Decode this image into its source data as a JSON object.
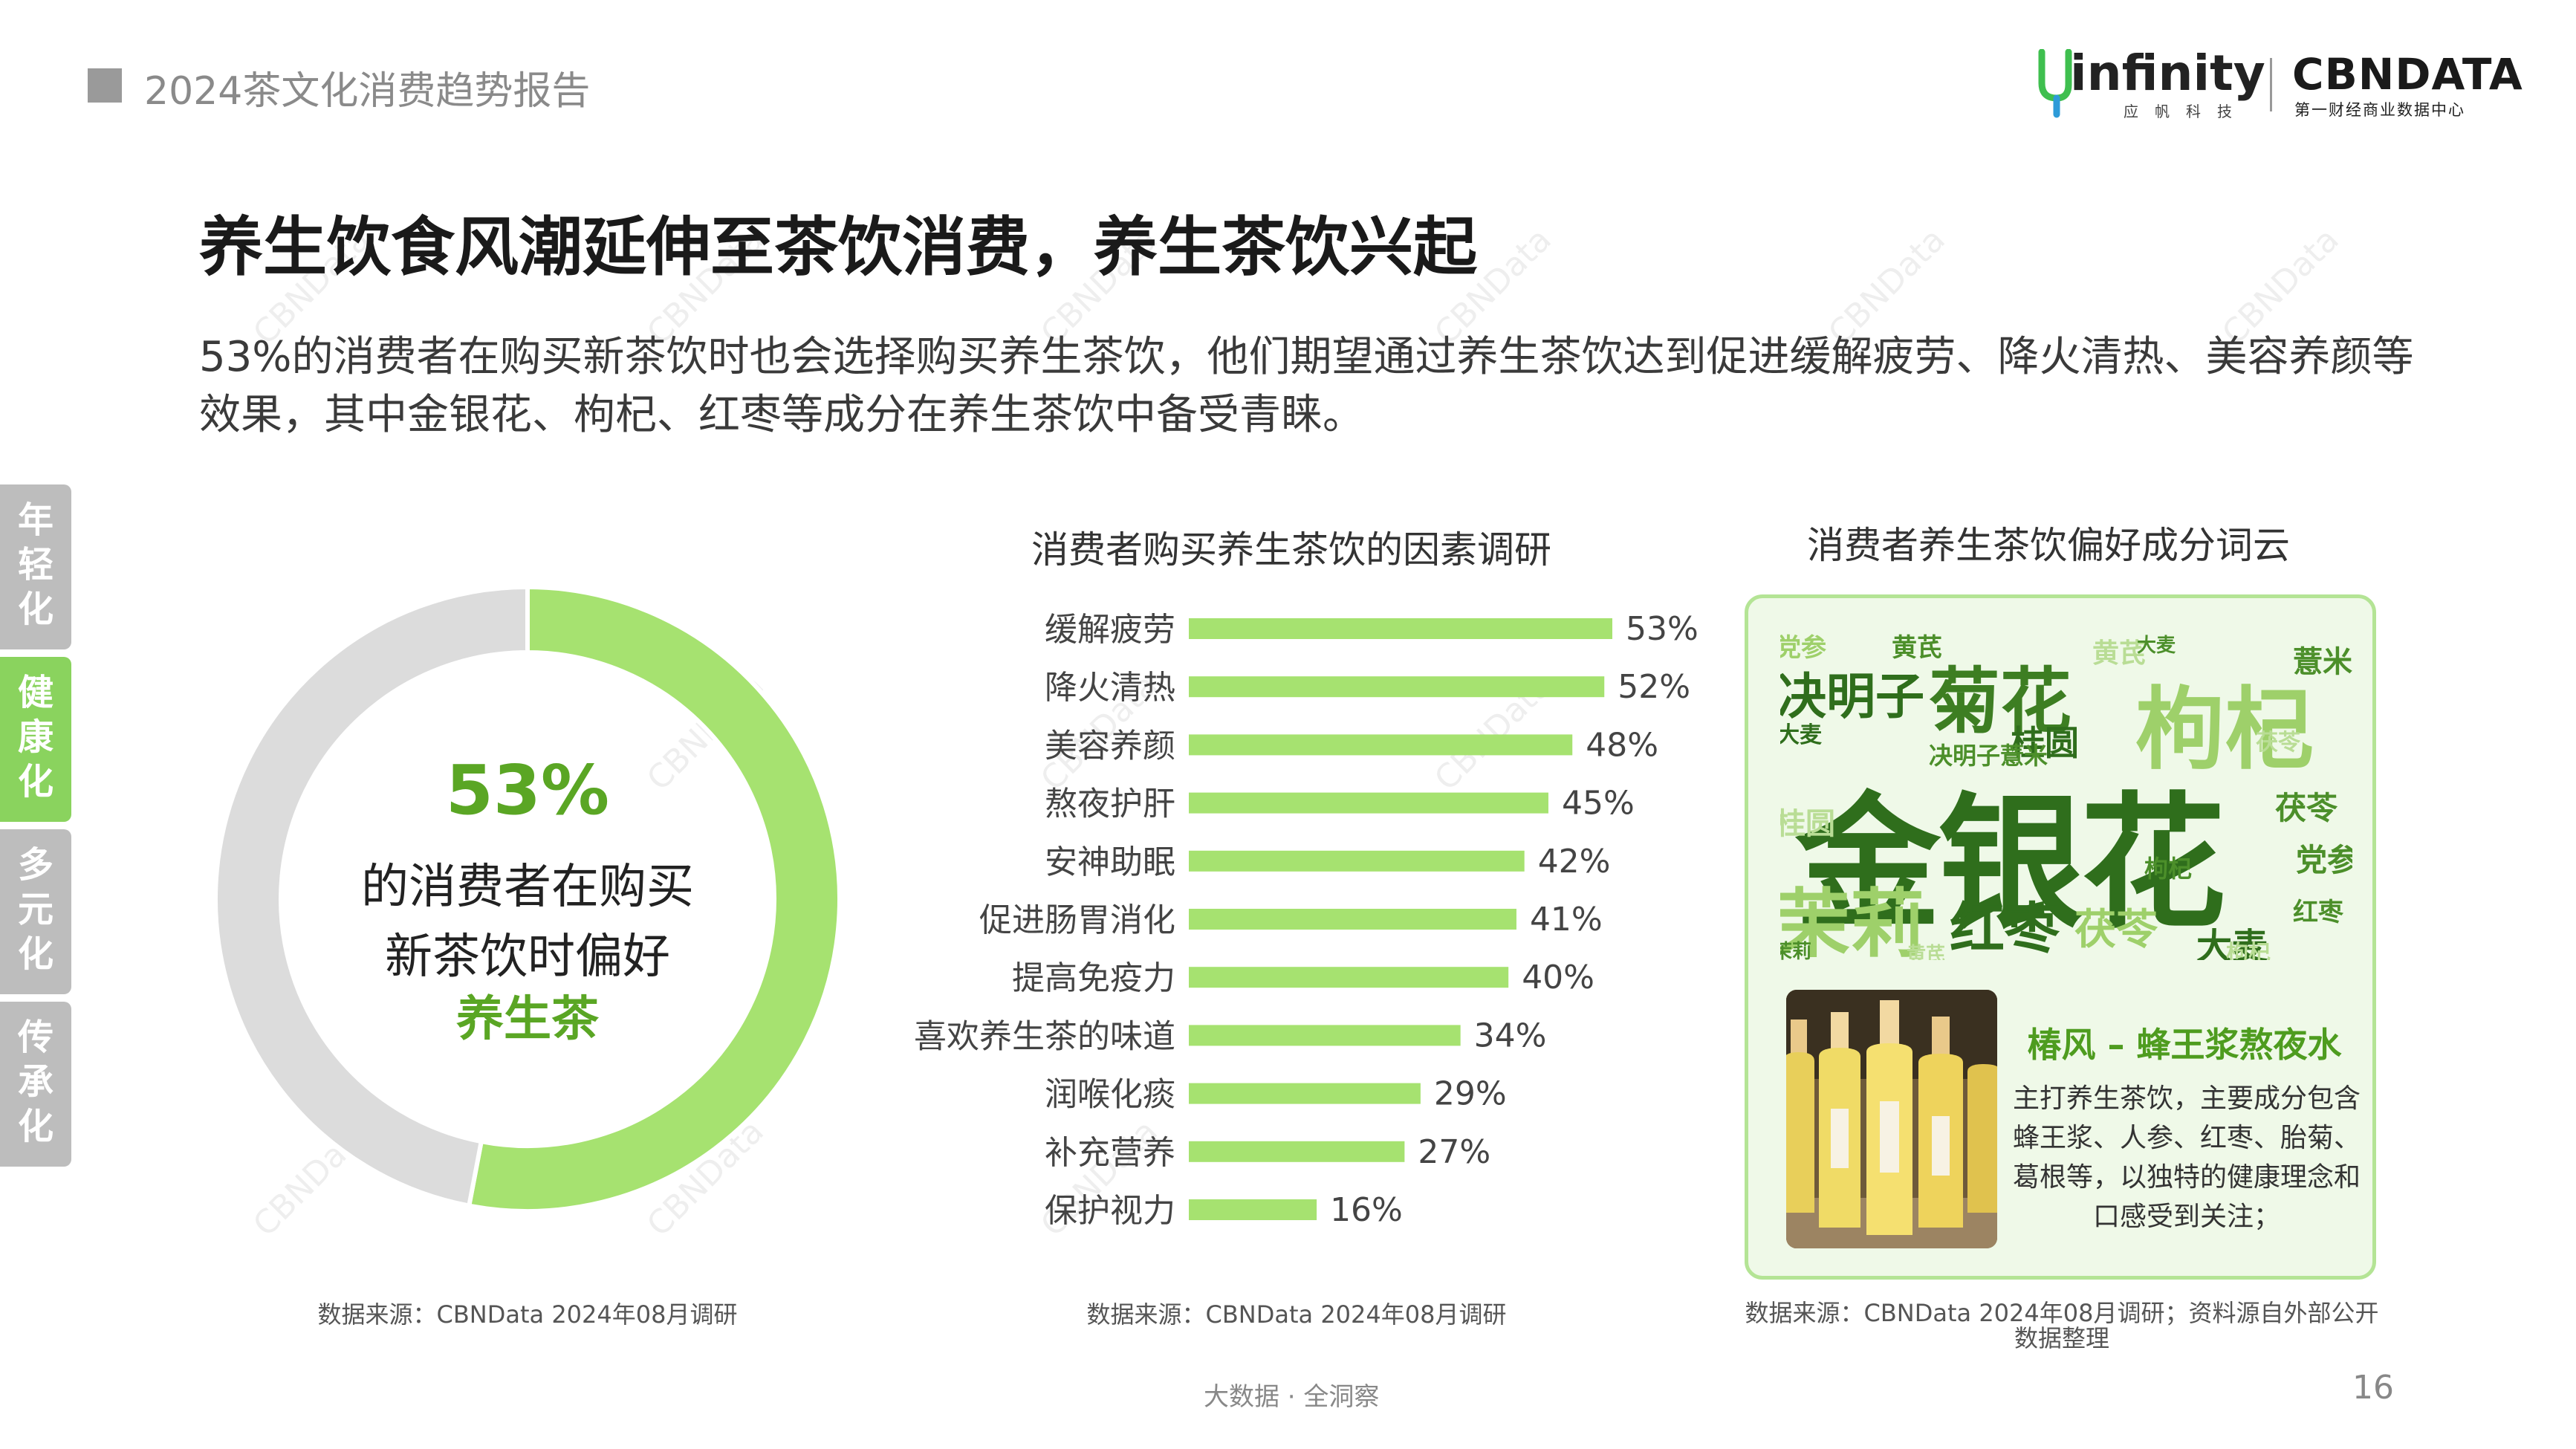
{
  "header": {
    "title": "2024茶文化消费趋势报告",
    "logo_infinity": "infinity",
    "logo_infinity_sub": "应帆科技",
    "logo_cbndata": "CBNDATA",
    "logo_cbndata_sub": "第一财经商业数据中心"
  },
  "headline": "养生饮食风潮延伸至茶饮消费，养生茶饮兴起",
  "subtitle": "53%的消费者在购买新茶饮时也会选择购买养生茶饮，他们期望通过养生茶饮达到促进缓解疲劳、降火清热、美容养颜等效果，其中金银花、枸杞、红枣等成分在养生茶饮中备受青睐。",
  "side_tabs": [
    {
      "label": "年轻化",
      "active": false
    },
    {
      "label": "健康化",
      "active": true
    },
    {
      "label": "多元化",
      "active": false
    },
    {
      "label": "传承化",
      "active": false
    }
  ],
  "donut": {
    "percent_label": "53%",
    "line1": "的消费者在购买",
    "line2": "新茶饮时偏好",
    "emphasis": "养生茶",
    "source": "数据来源：CBNData 2024年08月调研"
  },
  "chart_data": [
    {
      "type": "pie",
      "categories": [
        "养生茶",
        ""
      ],
      "values": [
        53,
        47
      ],
      "colors": [
        "#a6e270",
        "#dcdcdc"
      ]
    },
    {
      "type": "bar",
      "orientation": "horizontal",
      "title": "消费者购买养生茶饮的因素调研",
      "categories": [
        "缓解疲劳",
        "降火清热",
        "美容养颜",
        "熬夜护肝",
        "安神助眠",
        "促进肠胃消化",
        "提高免疫力",
        "喜欢养生茶的味道",
        "润喉化痰",
        "补充营养",
        "保护视力"
      ],
      "values": [
        53,
        52,
        48,
        45,
        42,
        41,
        40,
        34,
        29,
        27,
        16
      ],
      "value_labels": [
        "53%",
        "52%",
        "48%",
        "45%",
        "42%",
        "41%",
        "40%",
        "34%",
        "29%",
        "27%",
        "16%"
      ],
      "color": "#a6e270",
      "source": "数据来源：CBNData 2024年08月调研"
    }
  ],
  "word_cloud": {
    "title": "消费者养生茶饮偏好成分词云",
    "words": [
      "金银花",
      "枸杞",
      "菊花",
      "茉莉",
      "红枣",
      "决明子",
      "茯苓",
      "大麦",
      "黄芪",
      "薏米",
      "党参",
      "桂圆",
      "大麦",
      "决明子薏米",
      "茯苓",
      "党参",
      "桂圆",
      "红枣",
      "枸杞",
      "茉莉",
      "黄芪",
      "枸杞",
      "大麦",
      "茯苓",
      "金银花"
    ],
    "colors": [
      "#2f6e1c",
      "#4c8f2a",
      "#72b542",
      "#9ed06a",
      "#b9dd95"
    ],
    "product_name": "椿风 – 蜂王浆熬夜水",
    "product_desc": "主打养生茶饮，主要成分包含蜂王浆、人参、红枣、胎菊、葛根等，以独特的健康理念和口感受到关注；",
    "source_line1": "数据来源：CBNData 2024年08月调研；资料源自外部公开",
    "source_line2": "数据整理"
  },
  "footer": "大数据 · 全洞察",
  "page_number": "16",
  "watermark": "CBNData"
}
